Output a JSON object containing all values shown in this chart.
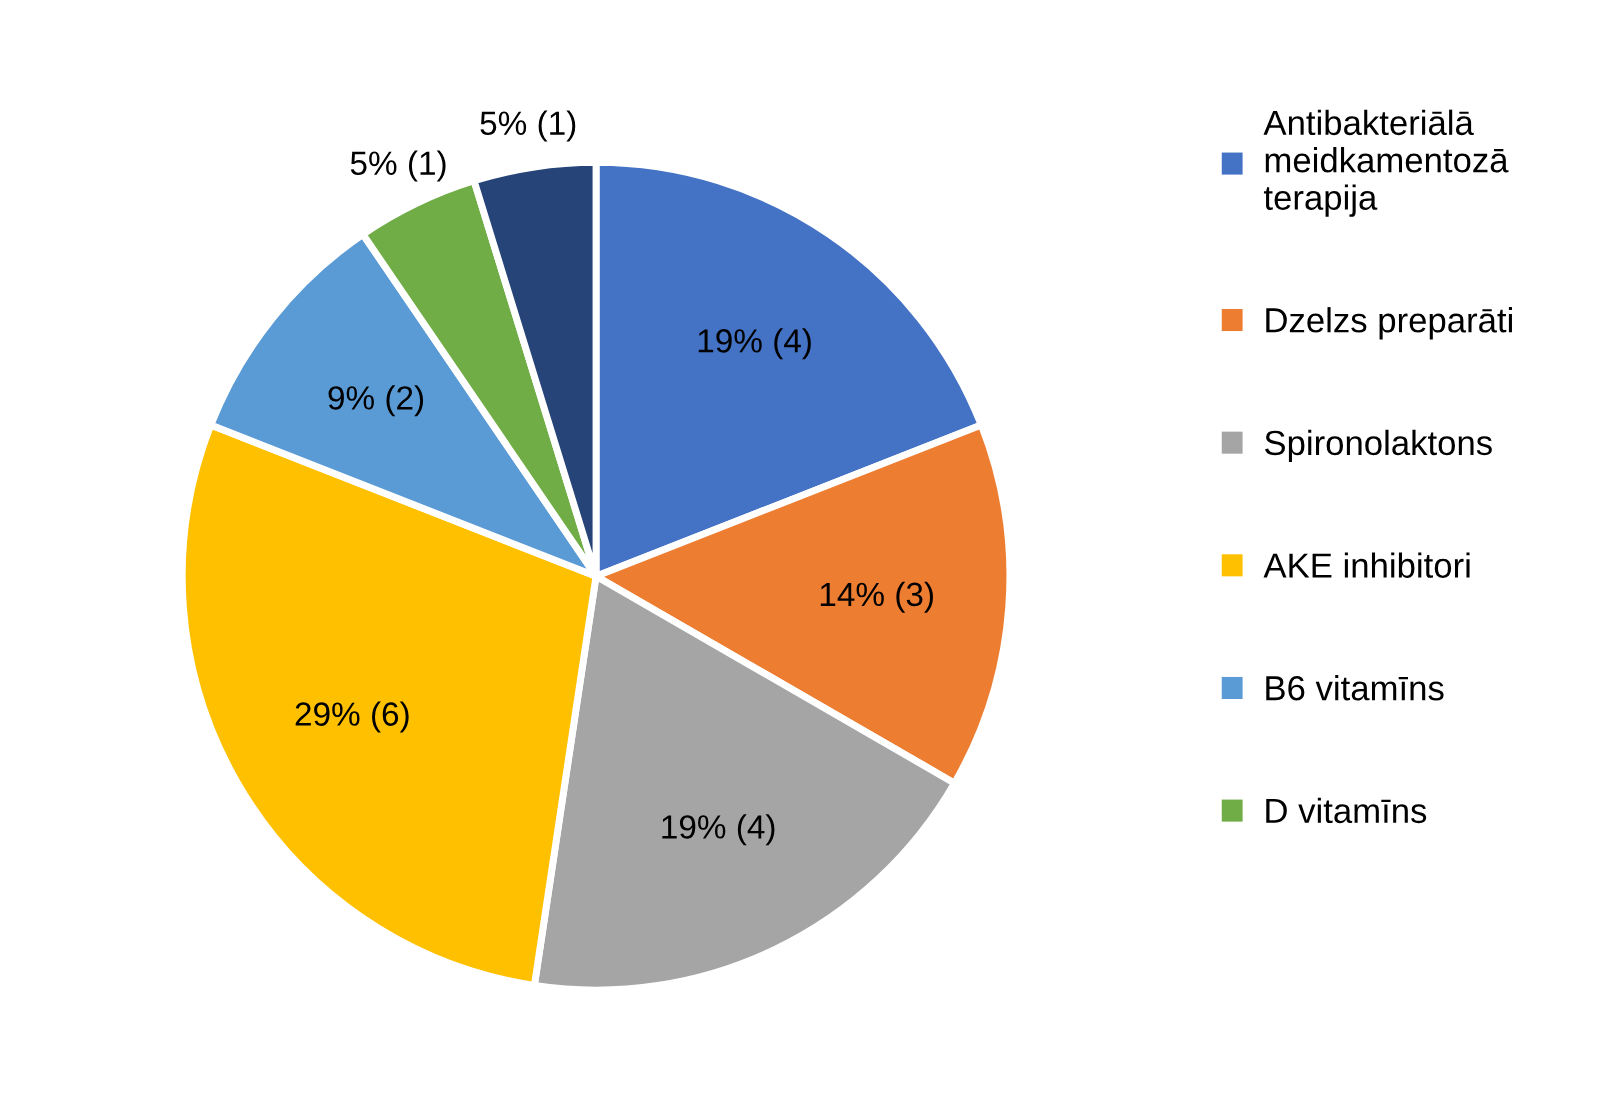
{
  "chart_data": {
    "type": "pie",
    "categories": [
      "Antibakteriālā\nmeidkamentozā\nterapija",
      "Dzelzs preparāti",
      "Spironolaktons",
      "AKE inhibitori",
      "B6 vitamīns",
      "D vitamīns",
      null
    ],
    "values": [
      4,
      3,
      4,
      6,
      2,
      1,
      1
    ],
    "value_labels": [
      "19% (4)",
      "14% (3)",
      "19% (4)",
      "29% (6)",
      "9% (2)",
      "5% (1)",
      "5% (1)"
    ],
    "colors": [
      "#4472c4",
      "#ed7d31",
      "#a5a5a5",
      "#ffc000",
      "#5b9bd5",
      "#70ad47",
      "#264478"
    ],
    "legend": "right"
  }
}
